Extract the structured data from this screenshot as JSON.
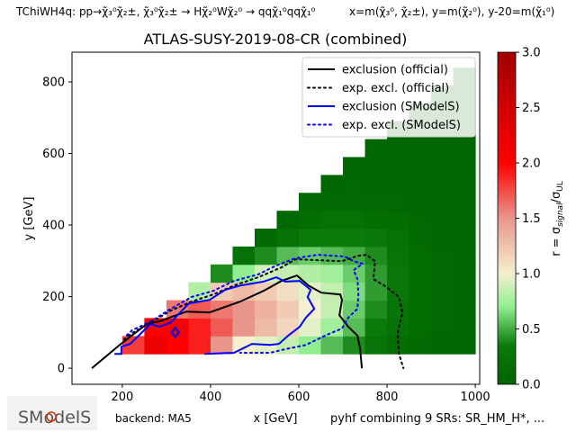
{
  "header": {
    "process": "TChiWH4q: pp→χ̃₃⁰χ̃₂±, χ̃₃⁰χ̃₂± → Hχ̃₂⁰Wχ̃₂⁰ → qqχ̃₁⁰qqχ̃₁⁰",
    "axes_definition": "x=m(χ̃₃⁰, χ̃₂±), y=m(χ̃₂⁰), y-20=m(χ̃₁⁰)"
  },
  "footer": {
    "logo": "SModelS",
    "backend": "backend: MA5",
    "combination": "pyhf combining 9 SRs: SR_HM_H*, ..."
  },
  "chart_data": {
    "type": "heatmap",
    "title": "ATLAS-SUSY-2019-08-CR (combined)",
    "xlabel": "x [GeV]",
    "ylabel": "y [GeV]",
    "colorbar_label": "r = σsignal/σUL",
    "xlim": [
      86,
      1010
    ],
    "ylim": [
      -45,
      883
    ],
    "xticks": [
      200,
      400,
      600,
      800,
      1000
    ],
    "yticks": [
      0,
      200,
      400,
      600,
      800
    ],
    "colorbar": {
      "range": [
        0,
        3
      ],
      "ticks": [
        "0.0",
        "0.5",
        "1.0",
        "1.5",
        "2.0",
        "2.5",
        "3.0"
      ],
      "colormap": [
        [
          0,
          "#006400"
        ],
        [
          0.35,
          "#0a7a0a"
        ],
        [
          0.7,
          "#90ee90"
        ],
        [
          1.0,
          "#f5f0d0"
        ],
        [
          1.5,
          "#e8968c"
        ],
        [
          2.0,
          "#ff0000"
        ],
        [
          3.0,
          "#a00000"
        ]
      ]
    },
    "grid": false,
    "legend_placement": "top-right",
    "heatmap": {
      "x_centers": [
        225,
        275,
        325,
        375,
        425,
        475,
        525,
        575,
        625,
        675,
        725,
        775,
        825,
        875,
        925,
        975
      ],
      "y_centers": [
        65,
        115,
        165,
        215,
        265,
        315,
        365,
        415,
        465,
        515,
        565,
        615,
        665,
        715,
        765,
        815
      ],
      "cell_size": [
        50,
        50
      ],
      "r_values": [
        [
          1.8,
          2.2,
          2.0,
          1.9,
          1.5,
          1.0,
          0.95,
          0.85,
          0.7,
          0.55,
          0.4,
          0.25,
          0.15,
          0.1,
          0.05,
          0.03
        ],
        [
          null,
          2.0,
          2.1,
          1.9,
          1.7,
          1.5,
          1.3,
          1.15,
          0.95,
          0.75,
          0.55,
          0.35,
          0.2,
          0.12,
          0.06,
          0.04
        ],
        [
          null,
          null,
          1.6,
          1.7,
          1.6,
          1.5,
          1.35,
          1.2,
          1.0,
          0.85,
          0.6,
          0.4,
          0.25,
          0.12,
          0.06,
          0.04
        ],
        [
          null,
          null,
          null,
          0.8,
          1.2,
          1.3,
          1.2,
          1.1,
          0.95,
          0.85,
          0.65,
          0.45,
          0.3,
          0.15,
          0.07,
          0.04
        ],
        [
          null,
          null,
          null,
          null,
          0.4,
          0.7,
          0.9,
          0.85,
          0.8,
          0.75,
          0.6,
          0.45,
          0.3,
          0.15,
          0.08,
          0.04
        ],
        [
          null,
          null,
          null,
          null,
          null,
          0.2,
          0.4,
          0.55,
          0.6,
          0.55,
          0.5,
          0.4,
          0.25,
          0.12,
          0.06,
          0.03
        ],
        [
          null,
          null,
          null,
          null,
          null,
          null,
          0.1,
          0.2,
          0.35,
          0.35,
          0.35,
          0.3,
          0.2,
          0.1,
          0.05,
          0.03
        ],
        [
          null,
          null,
          null,
          null,
          null,
          null,
          null,
          0.08,
          0.15,
          0.2,
          0.2,
          0.15,
          0.12,
          0.06,
          0.04,
          0.03
        ],
        [
          null,
          null,
          null,
          null,
          null,
          null,
          null,
          null,
          0.06,
          0.1,
          0.1,
          0.08,
          0.06,
          0.04,
          0.03,
          0.02
        ],
        [
          null,
          null,
          null,
          null,
          null,
          null,
          null,
          null,
          null,
          0.05,
          0.06,
          0.05,
          0.04,
          0.03,
          0.02,
          0.02
        ],
        [
          null,
          null,
          null,
          null,
          null,
          null,
          null,
          null,
          null,
          null,
          0.03,
          0.03,
          0.03,
          0.03,
          0.03,
          0.03
        ],
        [
          null,
          null,
          null,
          null,
          null,
          null,
          null,
          null,
          null,
          null,
          null,
          0.03,
          0.03,
          0.03,
          0.03,
          0.03
        ],
        [
          null,
          null,
          null,
          null,
          null,
          null,
          null,
          null,
          null,
          null,
          null,
          null,
          0.03,
          0.03,
          0.03,
          0.03
        ],
        [
          null,
          null,
          null,
          null,
          null,
          null,
          null,
          null,
          null,
          null,
          null,
          null,
          null,
          0.03,
          0.03,
          0.03
        ],
        [
          null,
          null,
          null,
          null,
          null,
          null,
          null,
          null,
          null,
          null,
          null,
          null,
          null,
          null,
          0.03,
          0.03
        ],
        [
          null,
          null,
          null,
          null,
          null,
          null,
          null,
          null,
          null,
          null,
          null,
          null,
          null,
          null,
          null,
          0.03
        ]
      ]
    },
    "series": [
      {
        "name": "exclusion (official)",
        "color": "#000000",
        "style": "solid",
        "points": [
          [
            131,
            0
          ],
          [
            194,
            65
          ],
          [
            255,
            123
          ],
          [
            284,
            131
          ],
          [
            345,
            158
          ],
          [
            398,
            156
          ],
          [
            467,
            186
          ],
          [
            520,
            216
          ],
          [
            561,
            244
          ],
          [
            596,
            259
          ],
          [
            622,
            231
          ],
          [
            651,
            211
          ],
          [
            694,
            206
          ],
          [
            698,
            191
          ],
          [
            692,
            148
          ],
          [
            712,
            116
          ],
          [
            733,
            91
          ],
          [
            739,
            55
          ],
          [
            743,
            0
          ]
        ]
      },
      {
        "name": "exp. excl. (official)",
        "color": "#000000",
        "style": "dotted",
        "points": [
          [
            204,
            81
          ],
          [
            222,
            98
          ],
          [
            265,
            128
          ],
          [
            310,
            161
          ],
          [
            357,
            186
          ],
          [
            406,
            206
          ],
          [
            453,
            231
          ],
          [
            508,
            254
          ],
          [
            561,
            282
          ],
          [
            592,
            304
          ],
          [
            602,
            304
          ],
          [
            698,
            299
          ],
          [
            733,
            314
          ],
          [
            753,
            317
          ],
          [
            773,
            299
          ],
          [
            769,
            249
          ],
          [
            794,
            231
          ],
          [
            827,
            199
          ],
          [
            835,
            156
          ],
          [
            824,
            98
          ],
          [
            827,
            40
          ],
          [
            837,
            0
          ]
        ]
      },
      {
        "name": "exclusion (SModelS)",
        "color": "#0000ff",
        "style": "solid",
        "points": [
          [
            182,
            40
          ],
          [
            198,
            40
          ],
          [
            198,
            60
          ],
          [
            218,
            68
          ],
          [
            243,
            98
          ],
          [
            263,
            123
          ],
          [
            284,
            116
          ],
          [
            310,
            128
          ],
          [
            351,
            181
          ],
          [
            398,
            191
          ],
          [
            433,
            219
          ],
          [
            467,
            231
          ],
          [
            520,
            242
          ],
          [
            549,
            254
          ],
          [
            569,
            242
          ],
          [
            602,
            244
          ],
          [
            627,
            219
          ],
          [
            620,
            199
          ],
          [
            635,
            166
          ],
          [
            616,
            141
          ],
          [
            602,
            116
          ],
          [
            576,
            91
          ],
          [
            555,
            68
          ],
          [
            535,
            65
          ],
          [
            494,
            68
          ],
          [
            453,
            43
          ],
          [
            386,
            40
          ]
        ]
      },
      {
        "name": "exp. excl. (SModelS)",
        "color": "#0000ff",
        "style": "dotted",
        "points": [
          [
            210,
            92
          ],
          [
            222,
            106
          ],
          [
            265,
            131
          ],
          [
            310,
            166
          ],
          [
            357,
            199
          ],
          [
            406,
            216
          ],
          [
            453,
            244
          ],
          [
            508,
            262
          ],
          [
            549,
            287
          ],
          [
            592,
            307
          ],
          [
            643,
            317
          ],
          [
            704,
            312
          ],
          [
            724,
            299
          ],
          [
            745,
            292
          ],
          [
            724,
            274
          ],
          [
            733,
            249
          ],
          [
            735,
            206
          ],
          [
            733,
            166
          ],
          [
            712,
            141
          ],
          [
            698,
            111
          ],
          [
            663,
            93
          ],
          [
            616,
            65
          ],
          [
            569,
            53
          ],
          [
            535,
            43
          ],
          [
            467,
            43
          ]
        ]
      }
    ],
    "markers": [
      {
        "x": 320,
        "y": 100,
        "shape": "diamond",
        "color": "#0000ff"
      }
    ]
  }
}
